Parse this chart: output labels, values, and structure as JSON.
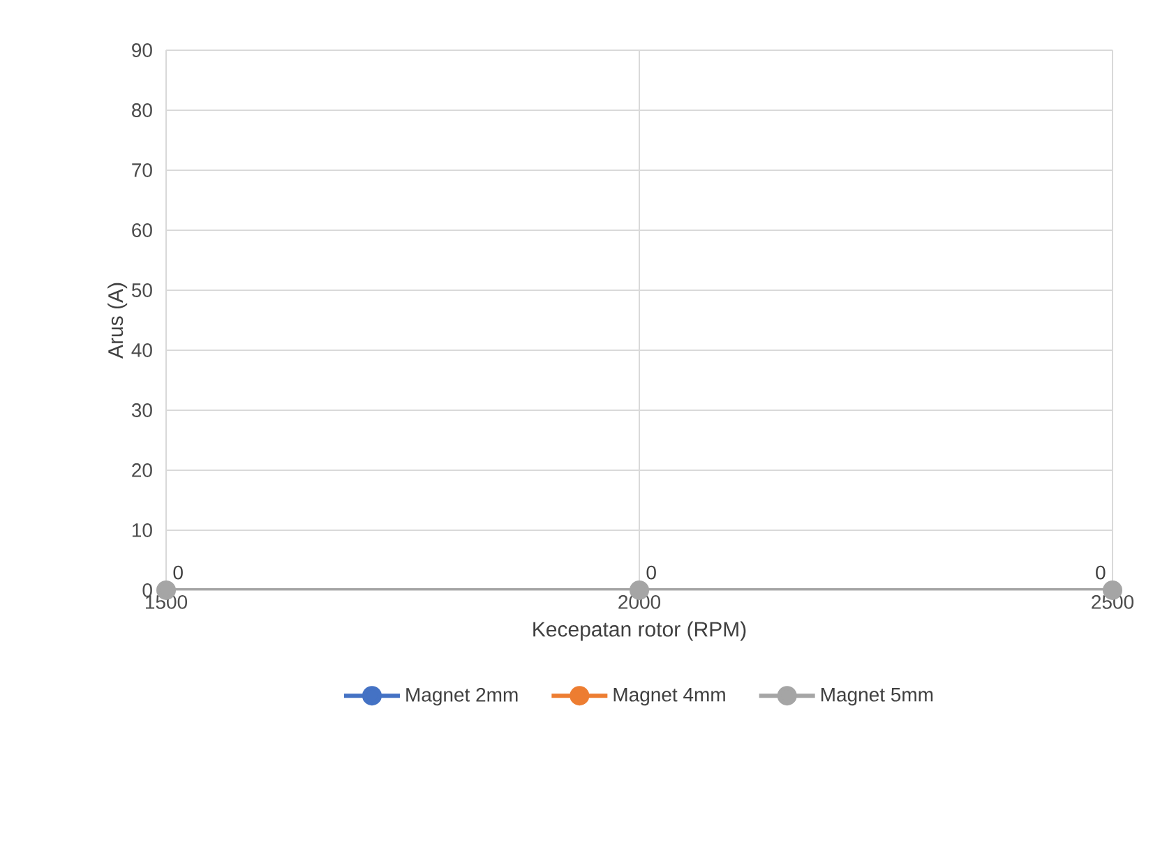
{
  "chart_data": {
    "type": "line",
    "xlabel": "Kecepatan rotor (RPM)",
    "ylabel": "Arus (A)",
    "categories": [
      "1500",
      "2000",
      "2500"
    ],
    "series": [
      {
        "name": "Magnet 2mm",
        "color": "#4472c4",
        "values": [
          null,
          null,
          null
        ]
      },
      {
        "name": "Magnet 4mm",
        "color": "#ed7d31",
        "values": [
          null,
          null,
          null
        ]
      },
      {
        "name": "Magnet 5mm",
        "color": "#a5a5a5",
        "values": [
          0,
          0,
          0
        ]
      }
    ],
    "ylim": [
      0,
      90
    ],
    "yticks": [
      0,
      10,
      20,
      30,
      40,
      50,
      60,
      70,
      80,
      90
    ],
    "grid": true,
    "legend": "bottom",
    "marker": "circle",
    "line_style": "solid",
    "data_labels": true
  }
}
